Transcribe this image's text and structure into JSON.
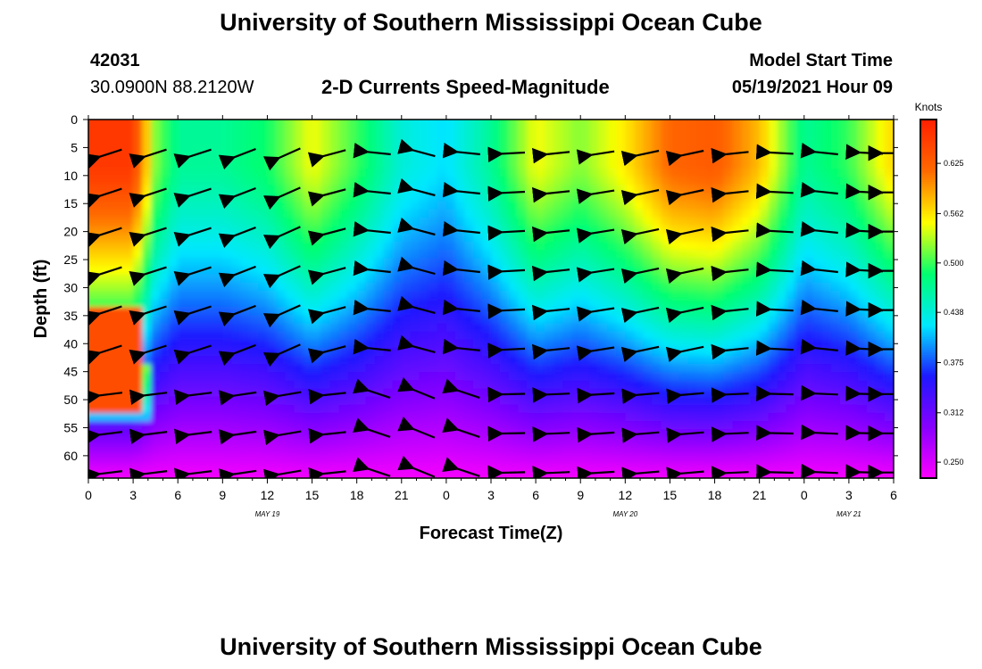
{
  "header": {
    "title_top": "University of Southern Mississippi Ocean Cube",
    "station_id": "42031",
    "location": "30.0900N  88.2120W",
    "subtitle": "2-D Currents Speed-Magnitude",
    "model_start_label": "Model Start Time",
    "model_start_value": "05/19/2021 Hour 09"
  },
  "footer": {
    "title_bottom": "University of Southern Mississippi Ocean Cube"
  },
  "chart_data": {
    "type": "heatmap",
    "title": "2-D Currents Speed-Magnitude",
    "xlabel": "Forecast Time(Z)",
    "ylabel": "Depth (ft)",
    "x_hours": [
      0,
      54
    ],
    "ylim": [
      0,
      64
    ],
    "x_ticks": [
      "0",
      "3",
      "6",
      "9",
      "12",
      "15",
      "18",
      "21",
      "0",
      "3",
      "6",
      "9",
      "12",
      "15",
      "18",
      "21",
      "0",
      "3",
      "6"
    ],
    "y_ticks": [
      0,
      5,
      10,
      15,
      20,
      25,
      30,
      35,
      40,
      45,
      50,
      55,
      60
    ],
    "date_labels": [
      {
        "text": "MAY 19",
        "hour": 12
      },
      {
        "text": "MAY 20",
        "hour": 36
      },
      {
        "text": "MAY 21",
        "hour": 51
      }
    ],
    "colorbar": {
      "title": "Knots",
      "ticks": [
        "0.625",
        "0.562",
        "0.500",
        "0.438",
        "0.375",
        "0.312",
        "0.250"
      ],
      "tick_values": [
        0.625,
        0.562,
        0.5,
        0.438,
        0.375,
        0.312,
        0.25
      ],
      "range": [
        0.23,
        0.68
      ],
      "colors": [
        "#ff00ff",
        "#8800ff",
        "#1e18ff",
        "#00e8ff",
        "#00ff70",
        "#ffff00",
        "#ff6a00",
        "#ff2000"
      ]
    },
    "vector_times": [
      1.5,
      4.5,
      7.5,
      10.5,
      13.5,
      16.5,
      19.5,
      22.5,
      25.5,
      28.5,
      31.5,
      34.5,
      37.5,
      40.5,
      43.5,
      46.5,
      49.5,
      52.5,
      54
    ],
    "vector_depths": [
      6,
      13,
      20,
      27,
      34,
      41,
      49,
      56,
      63
    ],
    "surface_speed_profile": [
      {
        "hour": 0,
        "speed": 0.66
      },
      {
        "hour": 3,
        "speed": 0.66
      },
      {
        "hour": 4.5,
        "speed": 0.52
      },
      {
        "hour": 6,
        "speed": 0.47
      },
      {
        "hour": 9,
        "speed": 0.47
      },
      {
        "hour": 12,
        "speed": 0.49
      },
      {
        "hour": 15,
        "speed": 0.55
      },
      {
        "hour": 18,
        "speed": 0.5
      },
      {
        "hour": 21,
        "speed": 0.44
      },
      {
        "hour": 24,
        "speed": 0.42
      },
      {
        "hour": 27,
        "speed": 0.47
      },
      {
        "hour": 30,
        "speed": 0.55
      },
      {
        "hour": 33,
        "speed": 0.52
      },
      {
        "hour": 36,
        "speed": 0.56
      },
      {
        "hour": 39,
        "speed": 0.62
      },
      {
        "hour": 42,
        "speed": 0.63
      },
      {
        "hour": 45,
        "speed": 0.58
      },
      {
        "hour": 48,
        "speed": 0.47
      },
      {
        "hour": 51,
        "speed": 0.5
      },
      {
        "hour": 54,
        "speed": 0.57
      }
    ]
  }
}
